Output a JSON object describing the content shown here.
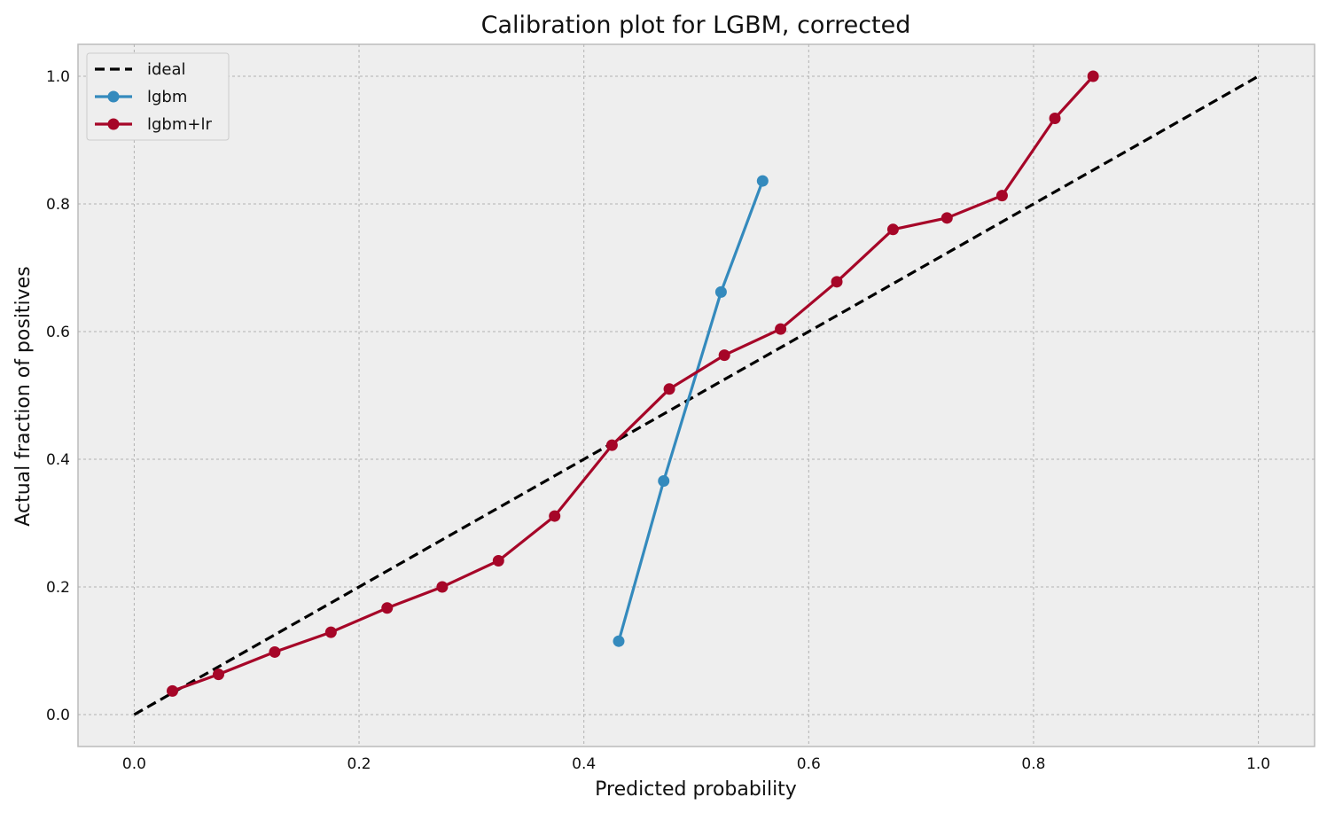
{
  "chart_data": {
    "type": "line",
    "title": "Calibration plot for LGBM, corrected",
    "xlabel": "Predicted probability",
    "ylabel": "Actual fraction of positives",
    "xlim": [
      -0.05,
      1.05
    ],
    "ylim": [
      -0.05,
      1.05
    ],
    "xticks": [
      "0.0",
      "0.2",
      "0.4",
      "0.6",
      "0.8",
      "1.0"
    ],
    "yticks": [
      "0.0",
      "0.2",
      "0.4",
      "0.6",
      "0.8",
      "1.0"
    ],
    "grid": true,
    "legend_position": "top-left",
    "series": [
      {
        "name": "ideal",
        "style": "dashed",
        "color": "#000000",
        "x": [
          0.0,
          1.0
        ],
        "y": [
          0.0,
          1.0
        ]
      },
      {
        "name": "lgbm",
        "style": "line-marker",
        "color": "#348abd",
        "x": [
          0.431,
          0.471,
          0.522,
          0.559
        ],
        "y": [
          0.115,
          0.366,
          0.662,
          0.836
        ]
      },
      {
        "name": "lgbm+lr",
        "style": "line-marker",
        "color": "#a60628",
        "x": [
          0.034,
          0.075,
          0.125,
          0.175,
          0.225,
          0.274,
          0.324,
          0.374,
          0.425,
          0.476,
          0.525,
          0.575,
          0.625,
          0.675,
          0.723,
          0.772,
          0.819,
          0.853
        ],
        "y": [
          0.037,
          0.063,
          0.098,
          0.129,
          0.167,
          0.2,
          0.241,
          0.311,
          0.422,
          0.51,
          0.563,
          0.604,
          0.678,
          0.76,
          0.778,
          0.813,
          0.934,
          1.0
        ]
      }
    ]
  }
}
